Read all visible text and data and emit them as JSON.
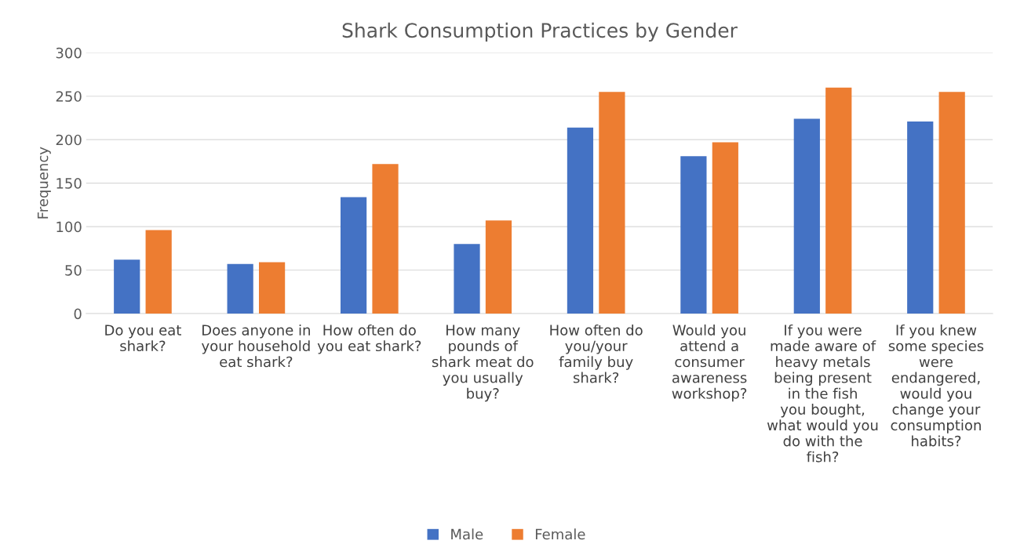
{
  "chart_data": {
    "type": "bar",
    "title": "Shark Consumption Practices by Gender",
    "ylabel": "Frequency",
    "categories": [
      "Do you eat shark?",
      "Does anyone in your household eat shark?",
      "How often do you eat shark?",
      "How many pounds of shark meat do you usually buy?",
      "How often do you/your family buy shark?",
      "Would you attend a consumer awareness workshop?",
      "If you were made aware of heavy metals being present in the fish you bought, what would you do with the fish?",
      "If you knew some species were endangered, would you change your consumption habits?"
    ],
    "series": [
      {
        "name": "Male",
        "color": "#4472c4",
        "values": [
          62,
          57,
          134,
          80,
          214,
          181,
          224,
          221
        ]
      },
      {
        "name": "Female",
        "color": "#ed7d31",
        "values": [
          96,
          59,
          172,
          107,
          255,
          197,
          260,
          255
        ]
      }
    ],
    "ylim": [
      0,
      300
    ],
    "yticks": [
      0,
      50,
      100,
      150,
      200,
      250,
      300
    ],
    "grid": "y",
    "legend": "bottom"
  }
}
